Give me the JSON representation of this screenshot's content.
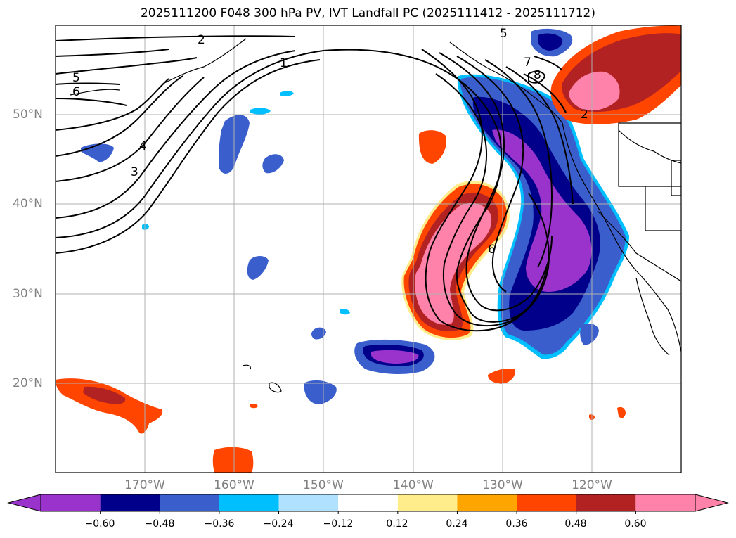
{
  "title": "2025111200 F048 300 hPa PV, IVT Landfall PC (2025111412 - 2025111712)",
  "map": {
    "projection": "plate carree",
    "lon_range": [
      -180,
      -110
    ],
    "lat_range": [
      10,
      60
    ],
    "gridlines": true,
    "lat_labels": [
      "20°N",
      "30°N",
      "40°N",
      "50°N"
    ],
    "lon_labels": [
      "170°W",
      "160°W",
      "150°W",
      "140°W",
      "130°W",
      "120°W"
    ],
    "contour_labels": [
      "1",
      "2",
      "3",
      "4",
      "5",
      "6",
      "7",
      "8",
      "5",
      "6",
      "2"
    ]
  },
  "colorbar": {
    "extend": "both",
    "colors": [
      "#9933cc",
      "#00008b",
      "#3a5fcd",
      "#00bfff",
      "#b0e2ff",
      "#ffffff",
      "#ffec8b",
      "#ffa500",
      "#ff4500",
      "#b22222",
      "#ff82ab"
    ],
    "ticks": [
      "−0.60",
      "−0.48",
      "−0.36",
      "−0.24",
      "−0.12",
      "0.12",
      "0.24",
      "0.36",
      "0.48",
      "0.60"
    ]
  }
}
